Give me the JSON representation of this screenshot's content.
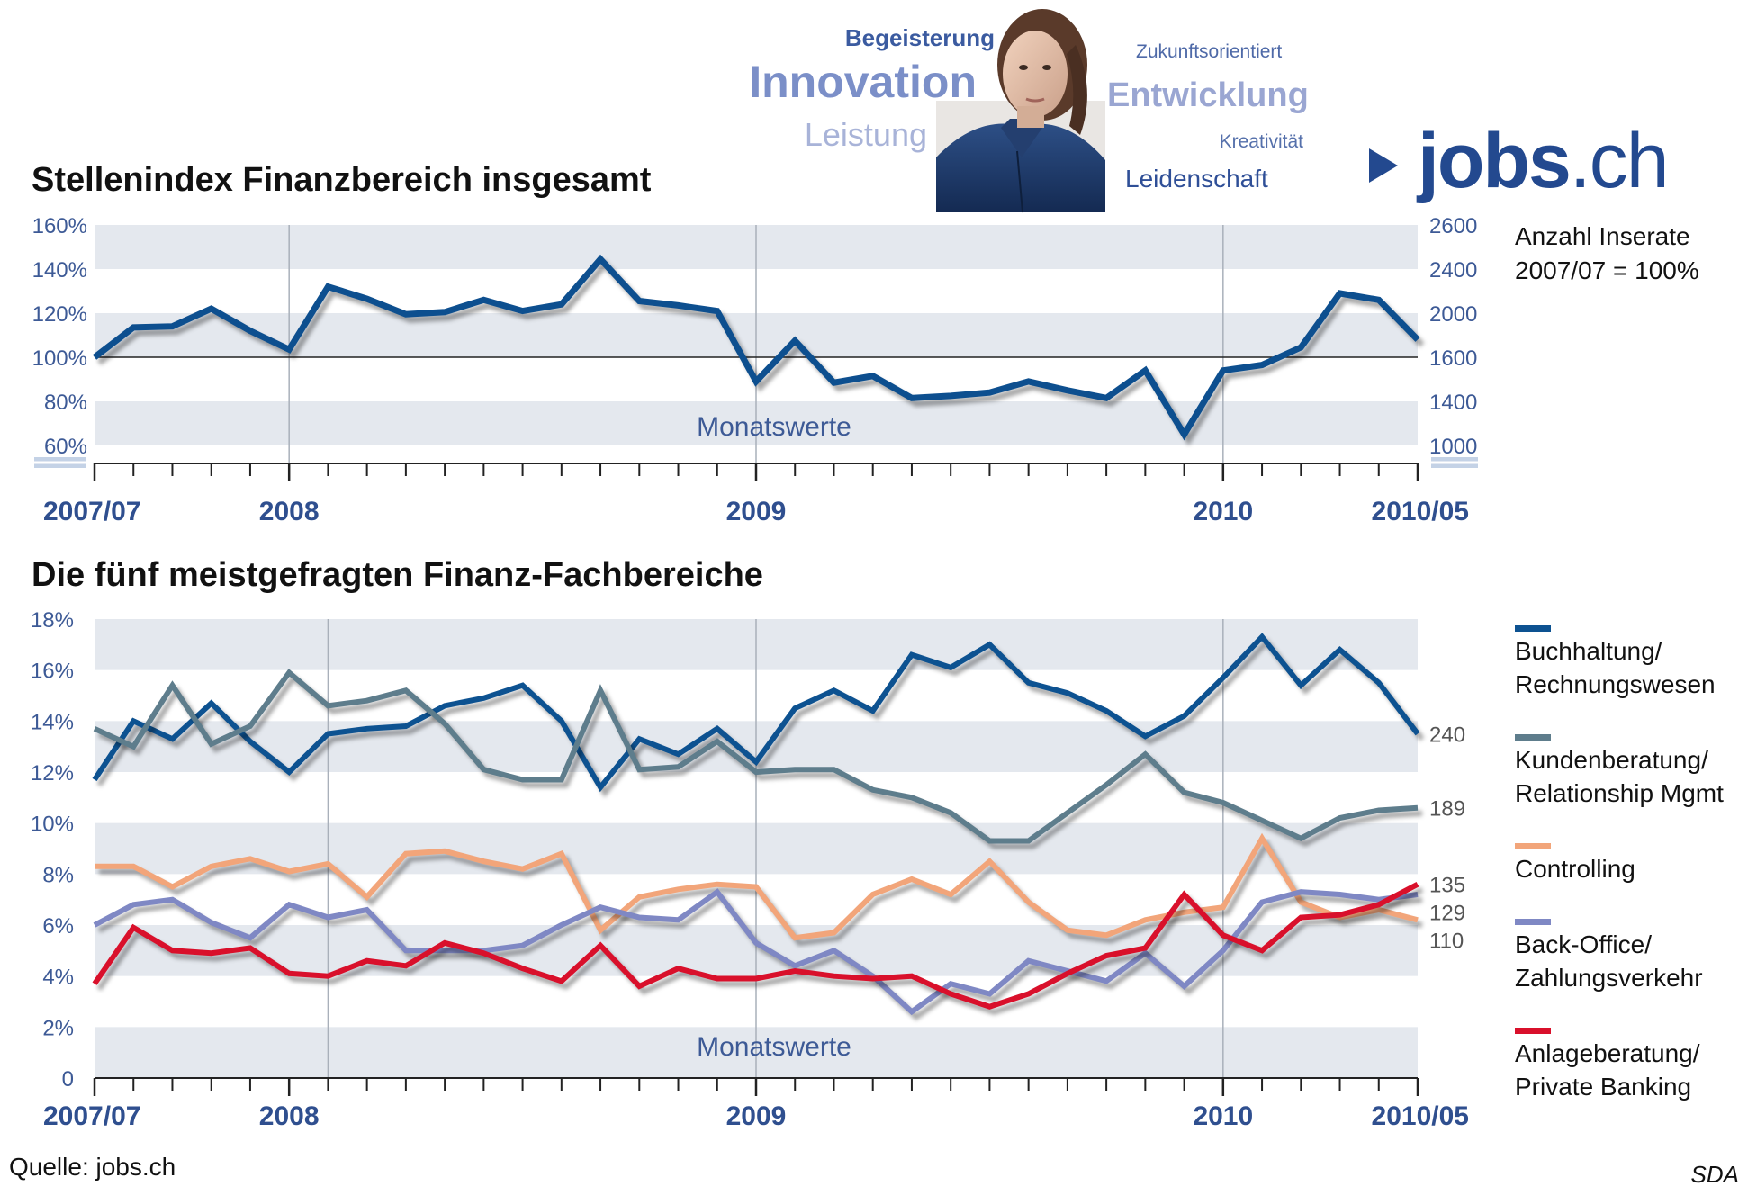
{
  "header": {
    "buzzwords": [
      {
        "text": "Begeisterung",
        "color": "#3b5ba0"
      },
      {
        "text": "Innovation",
        "color": "#7b8fc8"
      },
      {
        "text": "Leistung",
        "color": "#a8b3d8"
      },
      {
        "text": "Zukunftsorientiert",
        "color": "#4f6aa8"
      },
      {
        "text": "Entwicklung",
        "color": "#9aa6d2"
      },
      {
        "text": "Kreativität",
        "color": "#5570ab"
      },
      {
        "text": "Leidenschaft",
        "color": "#2f4f97"
      }
    ],
    "logo_text": "jobs",
    "logo_suffix": ".ch",
    "logo_color": "#23498f"
  },
  "source": "Quelle: jobs.ch",
  "credit": "SDA",
  "chart_data": [
    {
      "type": "line",
      "title": "Stellenindex Finanzbereich insgesamt",
      "note_lines": [
        "Anzahl Inserate",
        "2007/07 = 100%"
      ],
      "band_label": "Monatswerte",
      "x_labels": [
        "2007/07",
        "2008",
        "2009",
        "2010",
        "2010/05"
      ],
      "x_label_months": [
        0,
        5,
        17,
        29,
        34
      ],
      "y_left_ticks": [
        "60%",
        "80%",
        "100%",
        "120%",
        "140%",
        "160%"
      ],
      "y_right_ticks": [
        "1000",
        "1400",
        "1600",
        "2000",
        "2400",
        "2600"
      ],
      "ylim": [
        60,
        160
      ],
      "reference_line": 100,
      "series": [
        {
          "color": "#0d4f8f",
          "values": [
            100,
            113.5,
            114,
            122,
            112,
            103.5,
            132,
            126.5,
            119.5,
            120.5,
            126,
            121,
            124,
            144.5,
            125.5,
            123.5,
            121,
            89,
            107.5,
            88.5,
            91.5,
            81.5,
            82.5,
            84,
            89,
            85,
            81.5,
            94,
            65,
            94,
            96.5,
            104.5,
            129,
            126,
            108
          ]
        }
      ]
    },
    {
      "type": "line",
      "title": "Die fünf meistgefragten Finanz-Fachbereiche",
      "band_label": "Monatswerte",
      "x_labels": [
        "2007/07",
        "2008",
        "2009",
        "2010",
        "2010/05"
      ],
      "x_label_months": [
        0,
        5,
        17,
        29,
        34
      ],
      "y_ticks": [
        "0",
        "2%",
        "4%",
        "6%",
        "8%",
        "10%",
        "12%",
        "14%",
        "16%",
        "18%"
      ],
      "ylim": [
        0,
        18
      ],
      "series": [
        {
          "name": "Buchhaltung/ Rechnungswesen",
          "legend_lines": [
            "Buchhaltung/",
            "Rechnungswesen"
          ],
          "color": "#0d5291",
          "end_label": "240",
          "values": [
            11.7,
            14,
            13.3,
            14.7,
            13.2,
            12,
            13.5,
            13.7,
            13.8,
            14.6,
            14.9,
            15.4,
            14,
            11.4,
            13.3,
            12.7,
            13.7,
            12.4,
            14.5,
            15.2,
            14.4,
            16.6,
            16.1,
            17,
            15.5,
            15.1,
            14.4,
            13.4,
            14.2,
            15.7,
            17.3,
            15.4,
            16.8,
            15.5,
            13.5
          ]
        },
        {
          "name": "Kundenberatung/ Relationship Mgmt",
          "legend_lines": [
            "Kundenberatung/",
            "Relationship Mgmt"
          ],
          "color": "#5e7d8c",
          "end_label": "189",
          "values": [
            13.7,
            13,
            15.4,
            13.1,
            13.8,
            15.9,
            14.6,
            14.8,
            15.2,
            13.9,
            12.1,
            11.7,
            11.7,
            15.2,
            12.1,
            12.2,
            13.2,
            12,
            12.1,
            12.1,
            11.3,
            11,
            10.4,
            9.3,
            9.3,
            10.4,
            11.5,
            12.7,
            11.2,
            10.8,
            10.1,
            9.4,
            10.2,
            10.5,
            10.6
          ]
        },
        {
          "name": "Controlling",
          "legend_lines": [
            "Controlling"
          ],
          "color": "#f2a57a",
          "end_label": "110",
          "values": [
            8.3,
            8.3,
            7.5,
            8.3,
            8.6,
            8.1,
            8.4,
            7.1,
            8.8,
            8.9,
            8.5,
            8.2,
            8.8,
            5.8,
            7.1,
            7.4,
            7.6,
            7.5,
            5.5,
            5.7,
            7.2,
            7.8,
            7.2,
            8.5,
            6.9,
            5.8,
            5.6,
            6.2,
            6.5,
            6.7,
            9.4,
            6.9,
            6.3,
            6.6,
            6.2
          ]
        },
        {
          "name": "Back-Office/ Zahlungsverkehr",
          "legend_lines": [
            "Back-Office/",
            "Zahlungsverkehr"
          ],
          "color": "#7f88c4",
          "end_label": "129",
          "values": [
            6,
            6.8,
            7,
            6.1,
            5.5,
            6.8,
            6.3,
            6.6,
            5,
            5,
            5,
            5.2,
            6,
            6.7,
            6.3,
            6.2,
            7.3,
            5.3,
            4.4,
            5,
            4,
            2.6,
            3.7,
            3.3,
            4.6,
            4.2,
            3.8,
            4.9,
            3.6,
            5,
            6.9,
            7.3,
            7.2,
            7,
            7.2
          ]
        },
        {
          "name": "Anlageberatung/ Private Banking",
          "legend_lines": [
            "Anlageberatung/",
            "Private Banking"
          ],
          "color": "#d9102b",
          "end_label": "135",
          "values": [
            3.7,
            5.9,
            5,
            4.9,
            5.1,
            4.1,
            4,
            4.6,
            4.4,
            5.3,
            4.9,
            4.3,
            3.8,
            5.2,
            3.6,
            4.3,
            3.9,
            3.9,
            4.2,
            4,
            3.9,
            4,
            3.3,
            2.8,
            3.3,
            4.1,
            4.8,
            5.1,
            7.2,
            5.6,
            5,
            6.3,
            6.4,
            6.8,
            7.6
          ]
        }
      ]
    }
  ]
}
